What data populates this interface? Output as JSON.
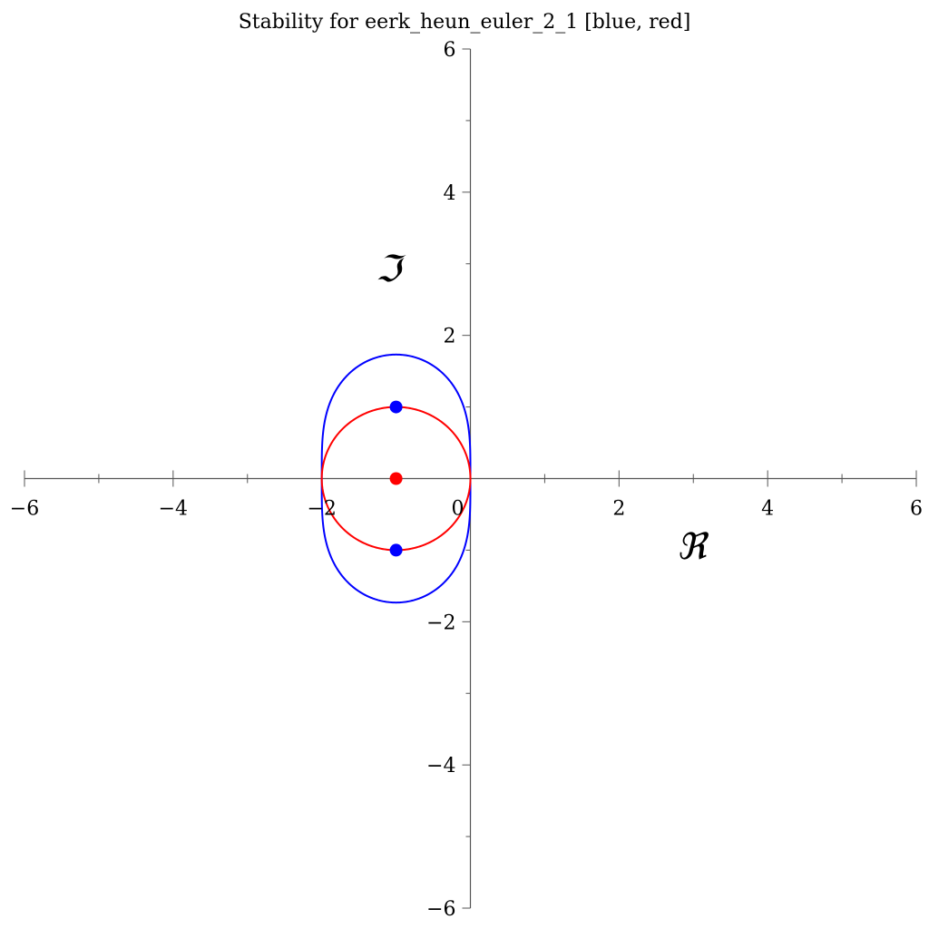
{
  "chart_data": {
    "type": "line",
    "title": "Stability for eerk_heun_euler_2_1 [blue, red]",
    "xlabel": "ℜ",
    "ylabel": "ℑ",
    "xlim": [
      -6,
      6
    ],
    "ylim": [
      -6,
      6
    ],
    "x_ticks": [
      -6,
      -4,
      -2,
      0,
      2,
      4,
      6
    ],
    "y_ticks": [
      -6,
      -4,
      -2,
      2,
      4,
      6
    ],
    "x_tick_labels": [
      "−6",
      "−4",
      "−2",
      "0",
      "2",
      "4",
      "6"
    ],
    "y_tick_labels": [
      "−6",
      "−4",
      "−2",
      "2",
      "4",
      "6"
    ],
    "grid": false,
    "series": [
      {
        "color": "#0000ff",
        "curve": "stability boundary |1 + z + z^2/2| = 1",
        "x_range": [
          -2,
          0
        ],
        "y_range": [
          -1.732,
          1.732
        ],
        "points": [
          {
            "x": -1,
            "y": 1
          },
          {
            "x": -1,
            "y": -1
          }
        ]
      },
      {
        "color": "#ff0000",
        "curve": "stability boundary |1 + z| = 1",
        "x_range": [
          -2,
          0
        ],
        "y_range": [
          -1,
          1
        ],
        "points": [
          {
            "x": -1,
            "y": 0
          }
        ]
      }
    ]
  }
}
